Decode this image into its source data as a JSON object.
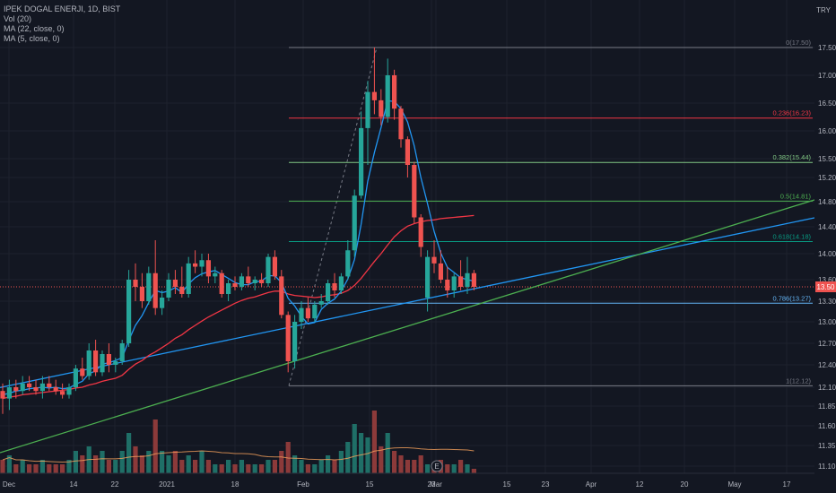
{
  "legend": {
    "symbol": "IPEK DOGAL ENERJI, 1D, BIST",
    "volume": "Vol (20)",
    "ma22": "MA (22, close, 0)",
    "ma5": "MA (5, close, 0)"
  },
  "currency": "TRY",
  "price_badge": "13.50",
  "earnings_marker": "E",
  "colors": {
    "bg": "#131722",
    "up": "#26a69a",
    "down": "#ef5350",
    "ma5": "#2196f3",
    "ma22": "#f23645",
    "trend_blue": "#2196f3",
    "trend_green": "#4caf50",
    "vol_ma": "#f7a35c"
  },
  "chart_data": {
    "type": "candlestick",
    "y_axis": {
      "range": [
        11.05,
        17.85
      ],
      "ticks": [
        "17.50",
        "17.00",
        "16.50",
        "16.00",
        "15.50",
        "15.20",
        "14.80",
        "14.40",
        "14.00",
        "13.60",
        "13.30",
        "13.00",
        "12.70",
        "12.40",
        "12.10",
        "11.85",
        "11.60",
        "11.35",
        "11.10"
      ]
    },
    "x_axis": {
      "ticks": [
        "Dec",
        "14",
        "22",
        "2021",
        "18",
        "Feb",
        "15",
        "23",
        "Mar",
        "15",
        "23",
        "Apr",
        "12",
        "20",
        "May",
        "17"
      ]
    },
    "fibonacci": [
      {
        "label": "0(17.50)",
        "value": 17.5,
        "color": "#787b86"
      },
      {
        "label": "0.236(16.23)",
        "value": 16.23,
        "color": "#f23645"
      },
      {
        "label": "0.382(15.44)",
        "value": 15.44,
        "color": "#81c784"
      },
      {
        "label": "0.5(14.81)",
        "value": 14.81,
        "color": "#4caf50"
      },
      {
        "label": "0.618(14.18)",
        "value": 14.18,
        "color": "#089981"
      },
      {
        "label": "0.786(13.27)",
        "value": 13.27,
        "color": "#64b5f6"
      },
      {
        "label": "1(12.12)",
        "value": 12.12,
        "color": "#787b86"
      }
    ],
    "candles": [
      [
        12.05,
        12.15,
        11.75,
        11.95
      ],
      [
        11.95,
        12.2,
        11.8,
        12.1
      ],
      [
        12.1,
        12.2,
        11.95,
        12.05
      ],
      [
        12.05,
        12.25,
        12.0,
        12.15
      ],
      [
        12.15,
        12.25,
        12.05,
        12.1
      ],
      [
        12.1,
        12.2,
        12.0,
        12.05
      ],
      [
        12.05,
        12.25,
        11.95,
        12.15
      ],
      [
        12.15,
        12.25,
        12.05,
        12.1
      ],
      [
        12.1,
        12.2,
        12.0,
        12.05
      ],
      [
        12.05,
        12.15,
        11.95,
        12.0
      ],
      [
        12.0,
        12.15,
        11.95,
        12.1
      ],
      [
        12.1,
        12.4,
        12.05,
        12.35
      ],
      [
        12.35,
        12.5,
        12.2,
        12.25
      ],
      [
        12.25,
        12.7,
        12.2,
        12.6
      ],
      [
        12.6,
        12.75,
        12.25,
        12.3
      ],
      [
        12.3,
        12.6,
        12.25,
        12.55
      ],
      [
        12.55,
        12.7,
        12.3,
        12.4
      ],
      [
        12.4,
        12.5,
        12.3,
        12.45
      ],
      [
        12.45,
        12.75,
        12.4,
        12.7
      ],
      [
        12.7,
        13.75,
        12.65,
        13.6
      ],
      [
        13.6,
        13.85,
        13.3,
        13.5
      ],
      [
        13.5,
        13.7,
        13.2,
        13.3
      ],
      [
        13.3,
        13.8,
        13.25,
        13.7
      ],
      [
        13.7,
        14.2,
        13.1,
        13.2
      ],
      [
        13.2,
        13.45,
        13.1,
        13.35
      ],
      [
        13.35,
        13.7,
        13.3,
        13.6
      ],
      [
        13.6,
        13.75,
        13.4,
        13.5
      ],
      [
        13.5,
        13.8,
        13.35,
        13.4
      ],
      [
        13.4,
        13.95,
        13.35,
        13.85
      ],
      [
        13.85,
        14.05,
        13.7,
        13.8
      ],
      [
        13.8,
        14.0,
        13.65,
        13.9
      ],
      [
        13.9,
        14.0,
        13.55,
        13.65
      ],
      [
        13.65,
        13.8,
        13.55,
        13.7
      ],
      [
        13.7,
        13.75,
        13.35,
        13.4
      ],
      [
        13.4,
        13.6,
        13.3,
        13.55
      ],
      [
        13.55,
        13.65,
        13.45,
        13.5
      ],
      [
        13.5,
        13.7,
        13.45,
        13.65
      ],
      [
        13.65,
        13.8,
        13.5,
        13.55
      ],
      [
        13.55,
        13.65,
        13.45,
        13.6
      ],
      [
        13.6,
        13.7,
        13.5,
        13.55
      ],
      [
        13.55,
        14.0,
        13.5,
        13.95
      ],
      [
        13.95,
        14.05,
        13.6,
        13.65
      ],
      [
        13.65,
        13.75,
        13.05,
        13.1
      ],
      [
        13.1,
        13.15,
        12.3,
        12.45
      ],
      [
        12.45,
        13.1,
        12.35,
        13.0
      ],
      [
        13.0,
        13.3,
        12.9,
        13.2
      ],
      [
        13.2,
        13.35,
        13.0,
        13.05
      ],
      [
        13.05,
        13.3,
        13.0,
        13.25
      ],
      [
        13.25,
        13.4,
        13.2,
        13.3
      ],
      [
        13.3,
        13.6,
        13.25,
        13.55
      ],
      [
        13.55,
        13.7,
        13.35,
        13.45
      ],
      [
        13.45,
        13.7,
        13.4,
        13.65
      ],
      [
        13.65,
        14.2,
        13.6,
        14.05
      ],
      [
        14.05,
        15.0,
        13.95,
        14.9
      ],
      [
        14.9,
        16.35,
        14.85,
        16.05
      ],
      [
        16.05,
        16.9,
        15.4,
        16.7
      ],
      [
        16.7,
        17.5,
        16.3,
        16.55
      ],
      [
        16.55,
        16.75,
        16.1,
        16.25
      ],
      [
        16.25,
        17.3,
        16.15,
        17.0
      ],
      [
        17.0,
        17.1,
        16.2,
        16.4
      ],
      [
        16.4,
        16.45,
        15.7,
        15.85
      ],
      [
        15.85,
        15.9,
        15.2,
        15.4
      ],
      [
        15.4,
        15.45,
        14.45,
        14.55
      ],
      [
        14.55,
        14.6,
        13.95,
        14.1
      ],
      [
        13.35,
        14.05,
        13.15,
        13.95
      ],
      [
        13.95,
        14.2,
        13.7,
        13.85
      ],
      [
        13.85,
        14.05,
        13.55,
        13.6
      ],
      [
        13.6,
        13.8,
        13.35,
        13.45
      ],
      [
        13.45,
        13.7,
        13.35,
        13.65
      ],
      [
        13.65,
        13.9,
        13.45,
        13.5
      ],
      [
        13.5,
        13.95,
        13.4,
        13.7
      ],
      [
        13.7,
        13.75,
        13.45,
        13.5
      ]
    ],
    "volumes": [
      3,
      4,
      2,
      3,
      2,
      2,
      3,
      2,
      2,
      2,
      3,
      5,
      4,
      6,
      4,
      5,
      3,
      3,
      5,
      9,
      6,
      4,
      5,
      12,
      5,
      4,
      5,
      3,
      4,
      3,
      5,
      3,
      2,
      2,
      3,
      2,
      3,
      2,
      2,
      2,
      3,
      3,
      5,
      7,
      4,
      3,
      2,
      2,
      3,
      4,
      3,
      5,
      7,
      11,
      9,
      8,
      14,
      6,
      9,
      5,
      4,
      3,
      3,
      4,
      2,
      2,
      3,
      2,
      2,
      3,
      2,
      1
    ],
    "ma5_values": [
      12.0,
      12.02,
      12.05,
      12.06,
      12.08,
      12.09,
      12.1,
      12.09,
      12.1,
      12.08,
      12.09,
      12.14,
      12.18,
      12.28,
      12.32,
      12.41,
      12.43,
      12.46,
      12.5,
      12.74,
      12.95,
      13.09,
      13.28,
      13.45,
      13.42,
      13.44,
      13.49,
      13.42,
      13.54,
      13.63,
      13.69,
      13.72,
      13.74,
      13.68,
      13.62,
      13.56,
      13.53,
      13.53,
      13.57,
      13.58,
      13.66,
      13.66,
      13.56,
      13.34,
      13.23,
      13.08,
      12.97,
      12.99,
      13.18,
      13.27,
      13.33,
      13.44,
      13.61,
      13.91,
      14.44,
      15.14,
      15.61,
      16.06,
      16.54,
      16.53,
      16.4,
      16.16,
      15.73,
      15.2,
      14.77,
      14.33,
      14.01,
      13.79,
      13.71,
      13.63,
      13.6,
      13.58
    ],
    "ma22_values": [
      11.95,
      11.97,
      11.98,
      12.0,
      12.01,
      12.02,
      12.03,
      12.04,
      12.05,
      12.06,
      12.07,
      12.09,
      12.1,
      12.13,
      12.15,
      12.18,
      12.2,
      12.22,
      12.26,
      12.34,
      12.41,
      12.46,
      12.53,
      12.58,
      12.64,
      12.7,
      12.77,
      12.82,
      12.89,
      12.95,
      13.01,
      13.07,
      13.12,
      13.17,
      13.22,
      13.27,
      13.31,
      13.34,
      13.36,
      13.39,
      13.42,
      13.44,
      13.44,
      13.4,
      13.38,
      13.37,
      13.36,
      13.35,
      13.36,
      13.38,
      13.39,
      13.41,
      13.45,
      13.52,
      13.62,
      13.75,
      13.88,
      14.0,
      14.13,
      14.25,
      14.34,
      14.41,
      14.45,
      14.48,
      14.5,
      14.51,
      14.53,
      14.54,
      14.55,
      14.56,
      14.57,
      14.58
    ]
  }
}
